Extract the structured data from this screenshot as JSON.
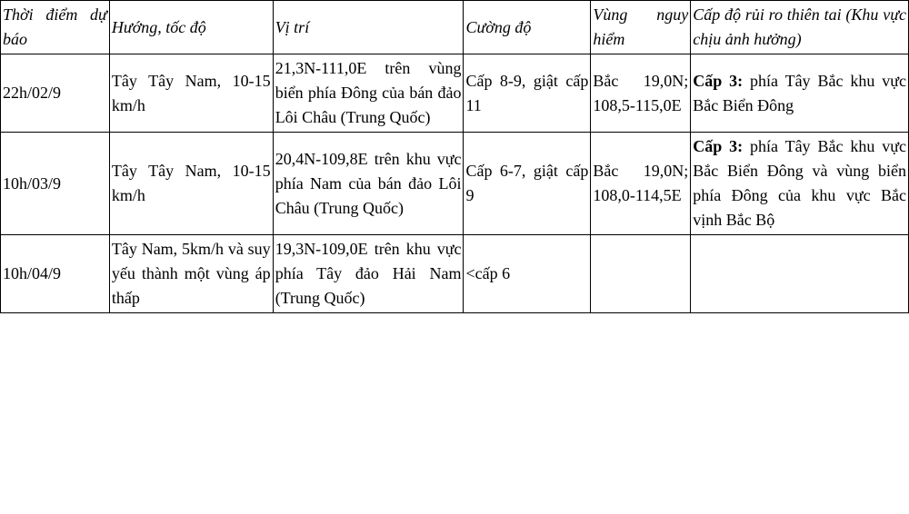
{
  "table": {
    "headers": {
      "time": "Thời điểm dự báo",
      "direction": "Hướng, tốc độ",
      "position": "Vị trí",
      "intensity": "Cường độ",
      "danger": "Vùng nguy hiểm",
      "risk": "Cấp độ rủi ro thiên tai (Khu vực chịu ảnh hưởng)"
    },
    "rows": [
      {
        "time": "22h/02/9",
        "direction": "Tây Tây Nam, 10-15 km/h",
        "position": "21,3N-111,0E trên vùng biển phía Đông của bán đảo Lôi Châu (Trung Quốc)",
        "intensity": "Cấp 8-9, giật cấp 11",
        "danger": "Bắc 19,0N; 108,5-115,0E",
        "risk_bold": "Cấp 3:",
        "risk_rest": " phía Tây Bắc khu vực Bắc Biển Đông"
      },
      {
        "time": "10h/03/9",
        "direction": "Tây Tây Nam, 10-15 km/h",
        "position": "20,4N-109,8E trên khu vực phía Nam của bán đảo Lôi Châu (Trung Quốc)",
        "intensity": "Cấp 6-7, giật cấp 9",
        "danger": "Bắc 19,0N; 108,0-114,5E",
        "risk_bold": "Cấp 3:",
        "risk_rest": " phía Tây Bắc khu vực Bắc Biển Đông và vùng biển phía Đông của khu vực Bắc vịnh Bắc Bộ"
      },
      {
        "time": "10h/04/9",
        "direction": "Tây Nam, 5km/h và suy yếu thành một vùng áp thấp",
        "position": "19,3N-109,0E trên khu vực phía Tây đảo Hải Nam (Trung Quốc)",
        "intensity": "<cấp 6",
        "danger": "",
        "risk_bold": "",
        "risk_rest": ""
      }
    ],
    "styling": {
      "border_color": "#000000",
      "background_color": "#ffffff",
      "text_color": "#000000",
      "font_family": "Times New Roman",
      "base_fontsize": 18,
      "header_style": "italic",
      "col_widths_pct": [
        12,
        18,
        21,
        14,
        11,
        24
      ],
      "cell_alignment": "justify",
      "line_height": 1.5
    }
  }
}
